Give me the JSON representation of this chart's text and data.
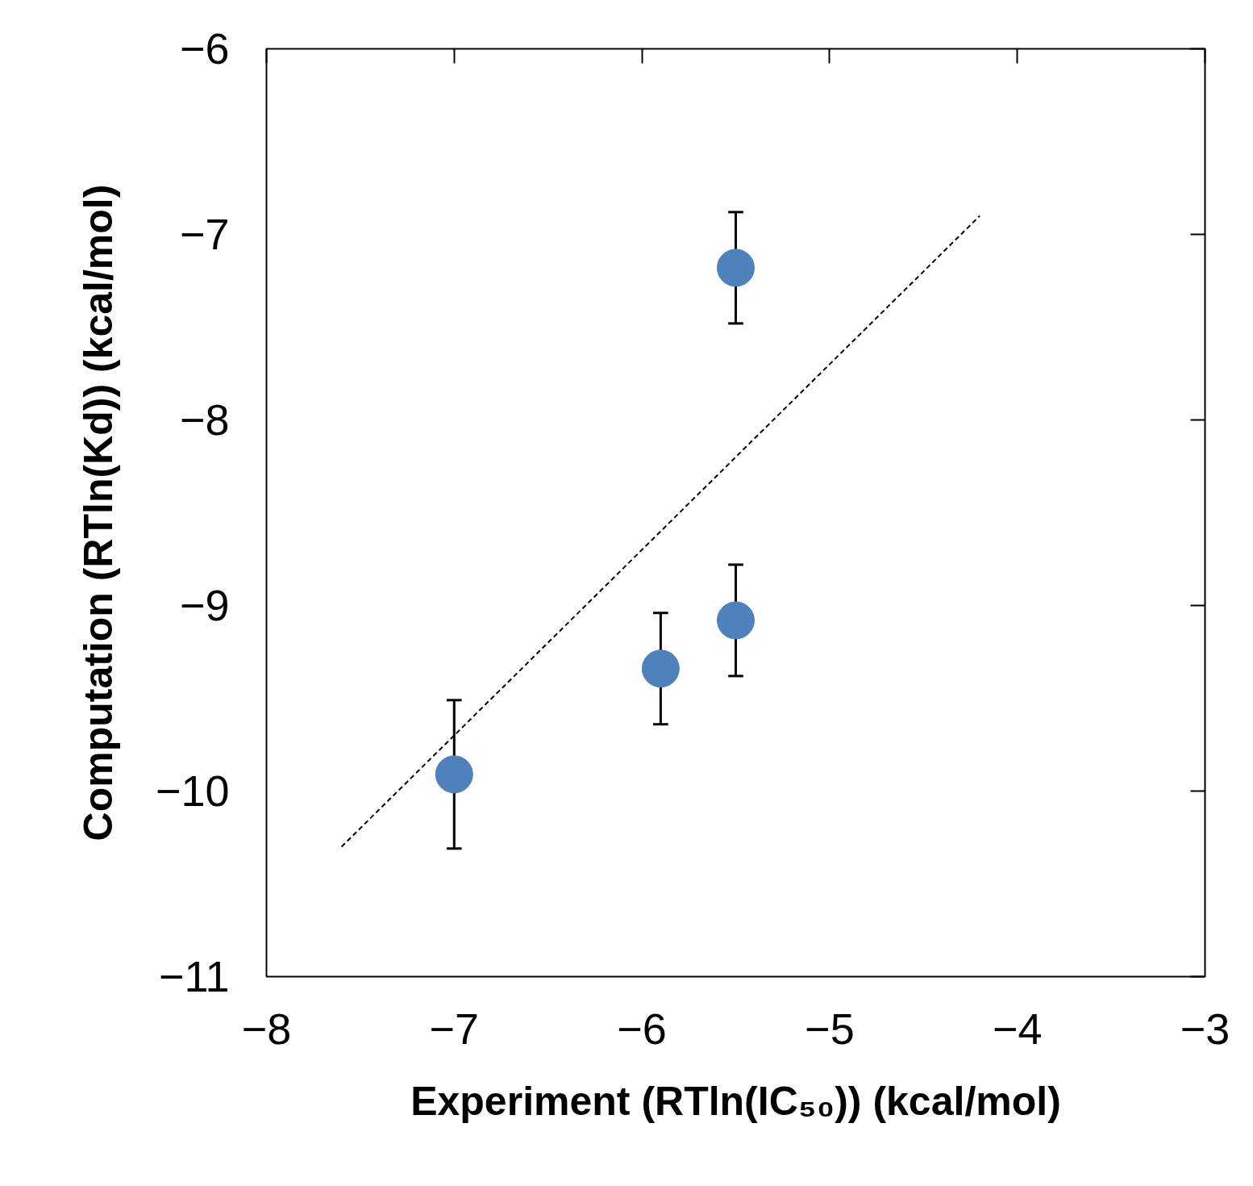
{
  "chart_data": {
    "type": "scatter",
    "xlabel": "Experiment (RTln(IC₅₀)) (kcal/mol)",
    "ylabel": "Computation (RTln(Kd)) (kcal/mol)",
    "xlim": [
      -8,
      -3
    ],
    "ylim": [
      -11,
      -6
    ],
    "xticks": [
      -8,
      -7,
      -6,
      -5,
      -4,
      -3
    ],
    "yticks": [
      -11,
      -10,
      -9,
      -8,
      -7,
      -6
    ],
    "grid": false,
    "series": [
      {
        "color": "#4f81bd",
        "marker": "circle",
        "x": [
          -7,
          -5.9,
          -5.5,
          -5.5
        ],
        "values": [
          -9.91,
          -9.34,
          -9.08,
          -7.18
        ],
        "errors": [
          0.4,
          0.3,
          0.3,
          0.3
        ]
      },
      {
        "type": "line",
        "color": "#000000",
        "line_style": "dashed",
        "marker": "none",
        "x": [
          -7.6,
          -4.2
        ],
        "values": [
          -10.3,
          -6.9
        ]
      }
    ]
  }
}
